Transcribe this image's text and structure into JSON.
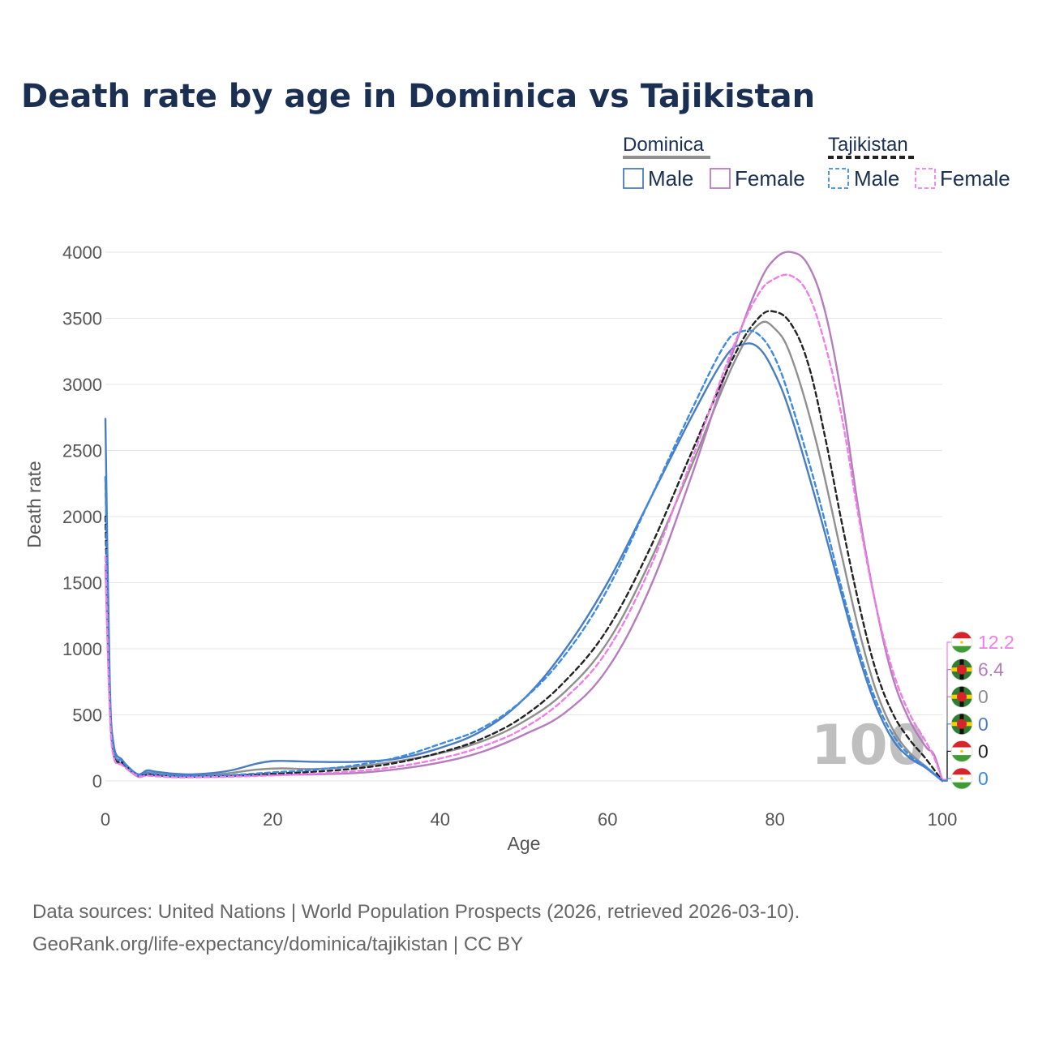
{
  "title": "Death rate by age in Dominica vs Tajikistan",
  "legend": {
    "groups": [
      {
        "name": "Dominica",
        "entries": [
          "Male",
          "Female"
        ]
      },
      {
        "name": "Tajikistan",
        "entries": [
          "Male",
          "Female"
        ]
      }
    ]
  },
  "footer": {
    "line1": "Data sources: United Nations | World Population Prospects (2026, retrieved 2026-03-10).",
    "line2": "GeoRank.org/life-expectancy/dominica/tajikistan | CC BY"
  },
  "watermark": "100",
  "colors": {
    "dominica_male": "#4a7cc4",
    "dominica_female": "#b57dbd",
    "dominica_total": "#8f8f8f",
    "tajikistan_male": "#3b8be6",
    "tajikistan_female": "#f07de8",
    "tajikistan_total": "#222222",
    "dominica_flag": "#2e7d32",
    "tajikistan_flag": "#d8232a"
  },
  "chart_data": {
    "type": "line",
    "title": "Death rate by age in Dominica vs Tajikistan",
    "xlabel": "Age",
    "ylabel": "Death rate",
    "xlim": [
      0,
      100
    ],
    "ylim": [
      0,
      4000
    ],
    "xticks": [
      0,
      20,
      40,
      60,
      80,
      100
    ],
    "yticks": [
      0,
      500,
      1000,
      1500,
      2000,
      2500,
      3000,
      3500,
      4000
    ],
    "grid": true,
    "series": [
      {
        "name": "Dominica Total",
        "country": "Dominica",
        "sex": "Total",
        "color": "#8f8f8f",
        "dash": "solid",
        "width": 2.4,
        "points": [
          [
            0,
            2300
          ],
          [
            0.5,
            700
          ],
          [
            1,
            230
          ],
          [
            2,
            150
          ],
          [
            3,
            85
          ],
          [
            4,
            45
          ],
          [
            5,
            65
          ],
          [
            6,
            55
          ],
          [
            8,
            42
          ],
          [
            10,
            38
          ],
          [
            12,
            45
          ],
          [
            15,
            60
          ],
          [
            18,
            85
          ],
          [
            21,
            95
          ],
          [
            25,
            90
          ],
          [
            30,
            110
          ],
          [
            35,
            150
          ],
          [
            40,
            210
          ],
          [
            45,
            300
          ],
          [
            50,
            450
          ],
          [
            55,
            680
          ],
          [
            60,
            1050
          ],
          [
            65,
            1650
          ],
          [
            70,
            2380
          ],
          [
            75,
            3150
          ],
          [
            78,
            3450
          ],
          [
            80,
            3420
          ],
          [
            82,
            3200
          ],
          [
            85,
            2550
          ],
          [
            88,
            1700
          ],
          [
            90,
            1150
          ],
          [
            92,
            700
          ],
          [
            94,
            400
          ],
          [
            96,
            220
          ],
          [
            98,
            110
          ],
          [
            100,
            0
          ]
        ],
        "end_value": "0"
      },
      {
        "name": "Dominica Male",
        "country": "Dominica",
        "sex": "Male",
        "color": "#4a7cc4",
        "dash": "solid",
        "width": 2.4,
        "points": [
          [
            0,
            2740
          ],
          [
            0.5,
            800
          ],
          [
            1,
            270
          ],
          [
            2,
            160
          ],
          [
            3,
            90
          ],
          [
            4,
            50
          ],
          [
            5,
            80
          ],
          [
            6,
            70
          ],
          [
            8,
            55
          ],
          [
            10,
            50
          ],
          [
            12,
            55
          ],
          [
            15,
            80
          ],
          [
            18,
            130
          ],
          [
            20,
            150
          ],
          [
            22,
            150
          ],
          [
            25,
            145
          ],
          [
            30,
            145
          ],
          [
            35,
            170
          ],
          [
            40,
            250
          ],
          [
            45,
            380
          ],
          [
            50,
            620
          ],
          [
            55,
            1000
          ],
          [
            60,
            1500
          ],
          [
            65,
            2120
          ],
          [
            70,
            2750
          ],
          [
            74,
            3200
          ],
          [
            76,
            3300
          ],
          [
            78,
            3280
          ],
          [
            80,
            3080
          ],
          [
            82,
            2750
          ],
          [
            85,
            2100
          ],
          [
            88,
            1400
          ],
          [
            90,
            950
          ],
          [
            92,
            580
          ],
          [
            94,
            320
          ],
          [
            96,
            180
          ],
          [
            98,
            100
          ],
          [
            100,
            0
          ]
        ],
        "end_value": "0"
      },
      {
        "name": "Dominica Female",
        "country": "Dominica",
        "sex": "Female",
        "color": "#b57dbd",
        "dash": "solid",
        "width": 2.4,
        "points": [
          [
            0,
            1620
          ],
          [
            0.5,
            600
          ],
          [
            1,
            190
          ],
          [
            2,
            130
          ],
          [
            3,
            70
          ],
          [
            4,
            30
          ],
          [
            5,
            45
          ],
          [
            6,
            40
          ],
          [
            8,
            32
          ],
          [
            10,
            30
          ],
          [
            15,
            35
          ],
          [
            20,
            45
          ],
          [
            25,
            50
          ],
          [
            30,
            60
          ],
          [
            35,
            90
          ],
          [
            40,
            140
          ],
          [
            45,
            220
          ],
          [
            50,
            350
          ],
          [
            55,
            520
          ],
          [
            60,
            850
          ],
          [
            65,
            1450
          ],
          [
            70,
            2300
          ],
          [
            75,
            3250
          ],
          [
            78,
            3750
          ],
          [
            80,
            3950
          ],
          [
            82,
            4000
          ],
          [
            84,
            3900
          ],
          [
            86,
            3550
          ],
          [
            88,
            2900
          ],
          [
            90,
            2050
          ],
          [
            92,
            1350
          ],
          [
            94,
            800
          ],
          [
            96,
            470
          ],
          [
            98,
            260
          ],
          [
            99,
            200
          ],
          [
            100,
            6.4
          ]
        ],
        "end_value": "6.4"
      },
      {
        "name": "Tajikistan Total",
        "country": "Tajikistan",
        "sex": "Total",
        "color": "#222222",
        "dash": "dashed",
        "width": 2.4,
        "points": [
          [
            0,
            2000
          ],
          [
            0.5,
            650
          ],
          [
            1,
            200
          ],
          [
            2,
            140
          ],
          [
            3,
            80
          ],
          [
            4,
            40
          ],
          [
            5,
            50
          ],
          [
            6,
            45
          ],
          [
            8,
            35
          ],
          [
            10,
            32
          ],
          [
            15,
            40
          ],
          [
            20,
            55
          ],
          [
            25,
            70
          ],
          [
            30,
            95
          ],
          [
            35,
            140
          ],
          [
            40,
            215
          ],
          [
            45,
            320
          ],
          [
            50,
            490
          ],
          [
            55,
            760
          ],
          [
            60,
            1150
          ],
          [
            65,
            1750
          ],
          [
            70,
            2480
          ],
          [
            75,
            3200
          ],
          [
            78,
            3500
          ],
          [
            80,
            3550
          ],
          [
            82,
            3450
          ],
          [
            84,
            3150
          ],
          [
            86,
            2600
          ],
          [
            88,
            1950
          ],
          [
            90,
            1350
          ],
          [
            92,
            850
          ],
          [
            94,
            520
          ],
          [
            96,
            320
          ],
          [
            98,
            170
          ],
          [
            100,
            0
          ]
        ],
        "end_value": "0"
      },
      {
        "name": "Tajikistan Male",
        "country": "Tajikistan",
        "sex": "Male",
        "color": "#3b8be6",
        "dash": "dashed",
        "width": 2.4,
        "points": [
          [
            0,
            2300
          ],
          [
            0.5,
            750
          ],
          [
            1,
            230
          ],
          [
            2,
            150
          ],
          [
            3,
            85
          ],
          [
            4,
            45
          ],
          [
            5,
            60
          ],
          [
            6,
            52
          ],
          [
            8,
            40
          ],
          [
            10,
            38
          ],
          [
            15,
            45
          ],
          [
            20,
            65
          ],
          [
            25,
            85
          ],
          [
            30,
            120
          ],
          [
            35,
            180
          ],
          [
            40,
            280
          ],
          [
            45,
            400
          ],
          [
            50,
            620
          ],
          [
            55,
            960
          ],
          [
            60,
            1450
          ],
          [
            65,
            2120
          ],
          [
            70,
            2800
          ],
          [
            74,
            3300
          ],
          [
            76,
            3400
          ],
          [
            78,
            3380
          ],
          [
            80,
            3200
          ],
          [
            82,
            2850
          ],
          [
            85,
            2200
          ],
          [
            88,
            1450
          ],
          [
            90,
            1000
          ],
          [
            92,
            620
          ],
          [
            94,
            360
          ],
          [
            96,
            200
          ],
          [
            98,
            110
          ],
          [
            100,
            0
          ]
        ],
        "end_value": "0"
      },
      {
        "name": "Tajikistan Female",
        "country": "Tajikistan",
        "sex": "Female",
        "color": "#f07de8",
        "dash": "dashed",
        "width": 2.4,
        "points": [
          [
            0,
            1700
          ],
          [
            0.5,
            560
          ],
          [
            1,
            180
          ],
          [
            2,
            120
          ],
          [
            3,
            70
          ],
          [
            4,
            35
          ],
          [
            5,
            40
          ],
          [
            6,
            35
          ],
          [
            8,
            28
          ],
          [
            10,
            27
          ],
          [
            15,
            32
          ],
          [
            20,
            42
          ],
          [
            25,
            55
          ],
          [
            30,
            75
          ],
          [
            35,
            110
          ],
          [
            40,
            170
          ],
          [
            45,
            260
          ],
          [
            50,
            400
          ],
          [
            55,
            630
          ],
          [
            60,
            990
          ],
          [
            65,
            1600
          ],
          [
            70,
            2420
          ],
          [
            75,
            3280
          ],
          [
            78,
            3680
          ],
          [
            80,
            3800
          ],
          [
            82,
            3820
          ],
          [
            84,
            3680
          ],
          [
            86,
            3300
          ],
          [
            88,
            2750
          ],
          [
            90,
            2000
          ],
          [
            92,
            1350
          ],
          [
            94,
            850
          ],
          [
            96,
            520
          ],
          [
            98,
            300
          ],
          [
            99,
            180
          ],
          [
            100,
            12.2
          ]
        ],
        "end_value": "12.2"
      }
    ],
    "end_labels": [
      {
        "series": "Tajikistan Female",
        "value": "12.2",
        "flag": "tajikistan"
      },
      {
        "series": "Dominica Female",
        "value": "6.4",
        "flag": "dominica"
      },
      {
        "series": "Dominica Total",
        "value": "0",
        "flag": "dominica"
      },
      {
        "series": "Dominica Male",
        "value": "0",
        "flag": "dominica"
      },
      {
        "series": "Tajikistan Total",
        "value": "0",
        "flag": "tajikistan"
      },
      {
        "series": "Tajikistan Male",
        "value": "0",
        "flag": "tajikistan"
      }
    ]
  }
}
